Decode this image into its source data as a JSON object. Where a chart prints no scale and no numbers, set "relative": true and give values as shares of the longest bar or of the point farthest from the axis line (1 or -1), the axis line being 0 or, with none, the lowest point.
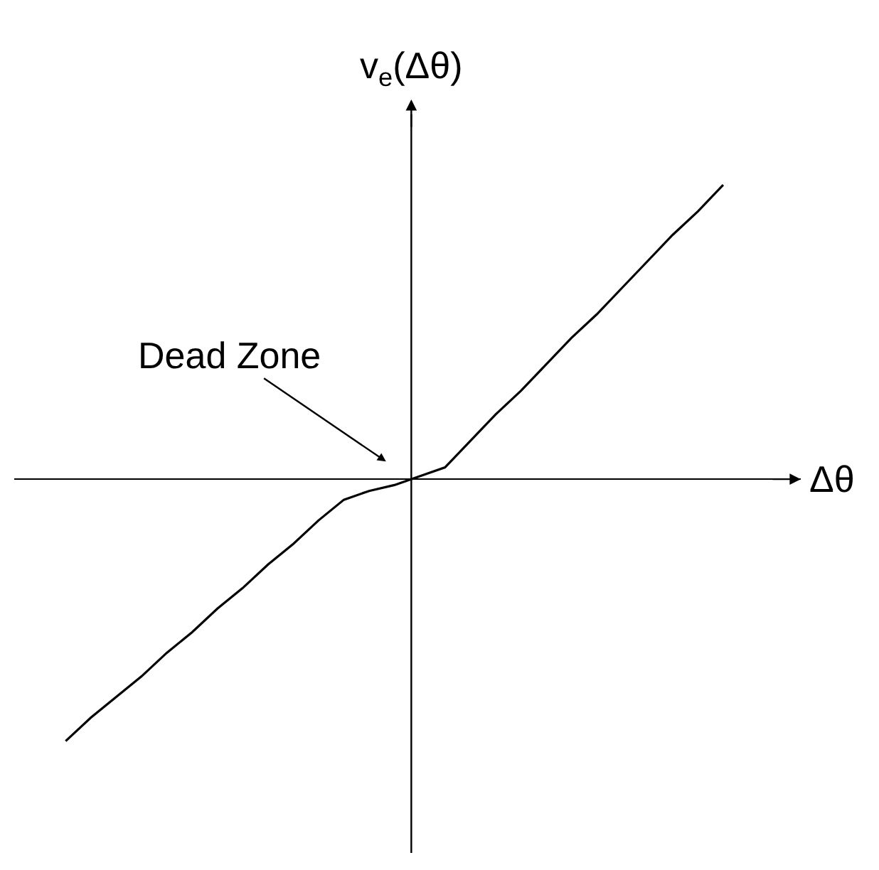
{
  "chart_data": {
    "type": "line",
    "relative": true,
    "xlabel": "Δθ",
    "ylabel": "v$_{e}$(Δθ)",
    "categories": [
      null,
      null,
      null,
      null,
      null,
      null,
      null,
      null,
      null,
      null,
      null,
      null,
      null,
      null,
      null,
      null,
      null,
      null,
      null,
      null,
      null,
      null,
      null,
      null,
      null,
      null,
      null
    ],
    "series": [
      {
        "color": "#000000",
        "values": [
          -0.89,
          -0.81,
          -0.74,
          -0.67,
          -0.59,
          -0.52,
          -0.44,
          -0.37,
          -0.29,
          -0.22,
          -0.14,
          -0.07,
          -0.04,
          -0.02,
          0.01,
          0.04,
          0.13,
          0.22,
          0.3,
          0.39,
          0.48,
          0.56,
          0.65,
          0.74,
          0.83,
          0.91,
          1.0
        ]
      }
    ],
    "annotations": [
      "Dead Zone"
    ],
    "marker": "none",
    "line_style": "solid"
  }
}
